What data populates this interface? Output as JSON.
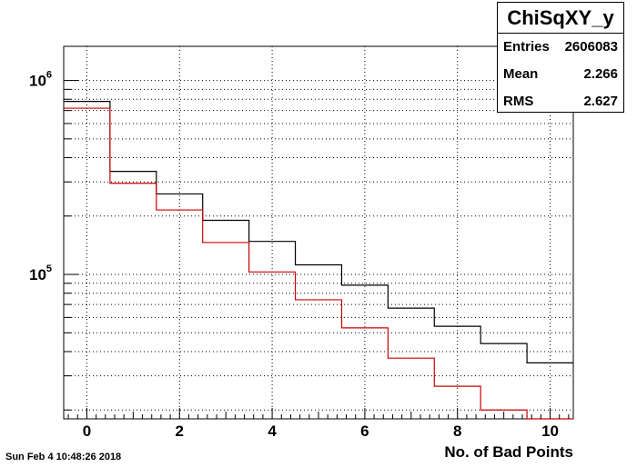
{
  "chart_data": {
    "type": "histogram",
    "title": "ChiSqXY_y",
    "xlabel": "No. of Bad Points",
    "ylabel": "",
    "xlim": [
      -0.5,
      10.5
    ],
    "ylim": [
      18000,
      1500000
    ],
    "yscale": "log",
    "grid": true,
    "x_ticks": [
      "0",
      "2",
      "4",
      "6",
      "8",
      "10"
    ],
    "x_tick_values": [
      0,
      2,
      4,
      6,
      8,
      10
    ],
    "y_ticks": [
      {
        "base": "10",
        "exp": "5",
        "value": 100000
      },
      {
        "base": "10",
        "exp": "6",
        "value": 1000000
      }
    ],
    "bin_edges": [
      -0.5,
      0.5,
      1.5,
      2.5,
      3.5,
      4.5,
      5.5,
      6.5,
      7.5,
      8.5,
      9.5,
      10.5
    ],
    "series": [
      {
        "color": "#000000",
        "values": [
          780000,
          340000,
          260000,
          190000,
          148000,
          112000,
          88000,
          67000,
          54000,
          44000,
          35000
        ]
      },
      {
        "color": "#cc0000",
        "values": [
          720000,
          295000,
          215000,
          146000,
          103000,
          74000,
          53000,
          37000,
          26500,
          20000,
          17500
        ]
      }
    ]
  },
  "stats": {
    "title": "ChiSqXY_y",
    "rows": [
      {
        "key": "Entries",
        "value": "2606083"
      },
      {
        "key": "Mean",
        "value": "2.266"
      },
      {
        "key": "RMS",
        "value": "2.627"
      }
    ]
  },
  "timestamp": "Sun Feb  4 10:48:26 2018"
}
